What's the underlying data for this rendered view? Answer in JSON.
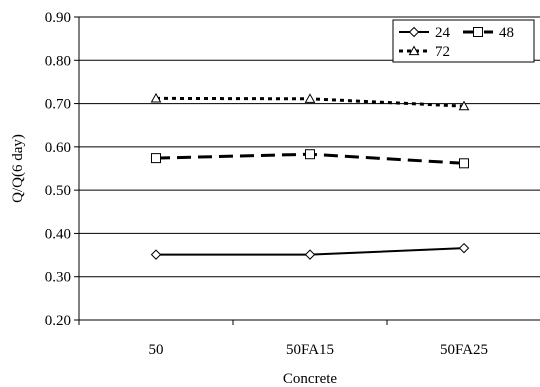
{
  "chart_data": {
    "type": "line",
    "title": "",
    "xlabel": "Concrete",
    "ylabel": "Q/Q(6 day)",
    "categories": [
      "50",
      "50FA15",
      "50FA25"
    ],
    "ylim": [
      0.2,
      0.9
    ],
    "yticks": [
      "0.20",
      "0.30",
      "0.40",
      "0.50",
      "0.60",
      "0.70",
      "0.80",
      "0.90"
    ],
    "grid": true,
    "legend_position": "top-right",
    "series": [
      {
        "name": "24",
        "values": [
          0.351,
          0.351,
          0.366
        ],
        "marker": "diamond",
        "dash": "solid",
        "color": "#000000"
      },
      {
        "name": "48",
        "values": [
          0.574,
          0.583,
          0.562
        ],
        "marker": "square",
        "dash": "dashed",
        "color": "#000000"
      },
      {
        "name": "72",
        "values": [
          0.712,
          0.711,
          0.694
        ],
        "marker": "triangle",
        "dash": "dotted",
        "color": "#000000"
      }
    ]
  }
}
